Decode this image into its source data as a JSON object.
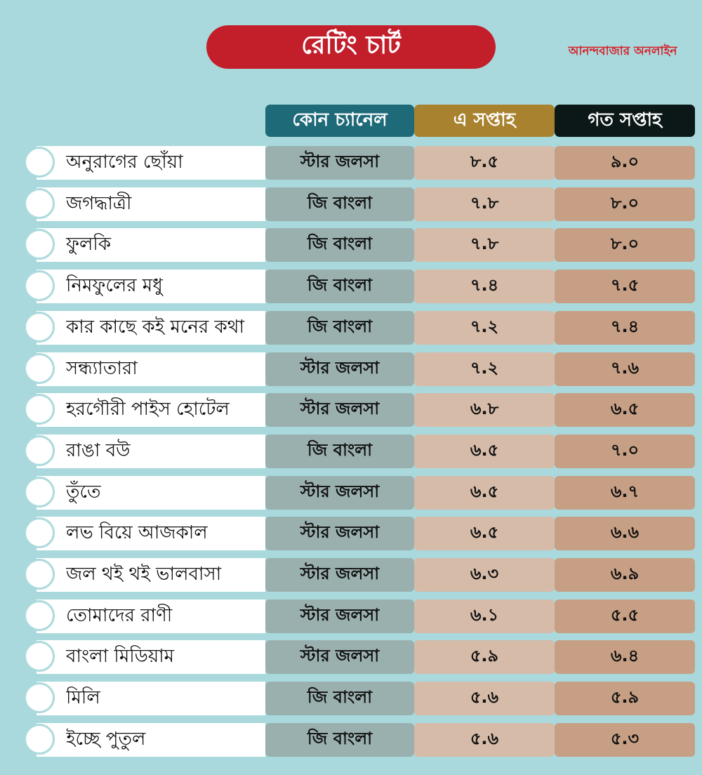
{
  "title": "রেটিং চার্ট",
  "brand": "আনন্দবাজার অনলাইন",
  "colors": {
    "background": "#a9d9dc",
    "title_pill": "#c21f2b",
    "header_channel": "#1e6a78",
    "header_this_week": "#a8822f",
    "header_last_week": "#0c1818",
    "cell_channel": "#9ab0af",
    "cell_this_week": "#d5bba8",
    "cell_last_week": "#c79f84"
  },
  "chart_data": {
    "type": "table",
    "columns": [
      "কোন চ্যানেল",
      "এ সপ্তাহ",
      "গত সপ্তাহ"
    ],
    "rows": [
      {
        "name": "অনুরাগের ছোঁয়া",
        "channel": "স্টার জলসা",
        "this_week": "৮.৫",
        "last_week": "৯.০"
      },
      {
        "name": "জগদ্ধাত্রী",
        "channel": "জি বাংলা",
        "this_week": "৭.৮",
        "last_week": "৮.০"
      },
      {
        "name": "ফুলকি",
        "channel": "জি বাংলা",
        "this_week": "৭.৮",
        "last_week": "৮.০"
      },
      {
        "name": "নিমফুলের মধু",
        "channel": "জি বাংলা",
        "this_week": "৭.৪",
        "last_week": "৭.৫"
      },
      {
        "name": "কার কাছে কই মনের কথা",
        "channel": "জি বাংলা",
        "this_week": "৭.২",
        "last_week": "৭.৪"
      },
      {
        "name": "সন্ধ্যাতারা",
        "channel": "স্টার জলসা",
        "this_week": "৭.২",
        "last_week": "৭.৬"
      },
      {
        "name": "হরগৌরী পাইস হোটেল",
        "channel": "স্টার জলসা",
        "this_week": "৬.৮",
        "last_week": "৬.৫"
      },
      {
        "name": "রাঙা বউ",
        "channel": "জি বাংলা",
        "this_week": "৬.৫",
        "last_week": "৭.০"
      },
      {
        "name": "তুঁতে",
        "channel": "স্টার জলসা",
        "this_week": "৬.৫",
        "last_week": "৬.৭"
      },
      {
        "name": "লভ বিয়ে আজকাল",
        "channel": "স্টার জলসা",
        "this_week": "৬.৫",
        "last_week": "৬.৬"
      },
      {
        "name": "জল থই থই ভালবাসা",
        "channel": "স্টার জলসা",
        "this_week": "৬.৩",
        "last_week": "৬.৯"
      },
      {
        "name": "তোমাদের রাণী",
        "channel": "স্টার জলসা",
        "this_week": "৬.১",
        "last_week": "৫.৫"
      },
      {
        "name": "বাংলা মিডিয়াম",
        "channel": "স্টার জলসা",
        "this_week": "৫.৯",
        "last_week": "৬.৪"
      },
      {
        "name": "মিলি",
        "channel": "জি বাংলা",
        "this_week": "৫.৬",
        "last_week": "৫.৯"
      },
      {
        "name": "ইচ্ছে পুতুল",
        "channel": "জি বাংলা",
        "this_week": "৫.৬",
        "last_week": "৫.৩"
      }
    ]
  }
}
